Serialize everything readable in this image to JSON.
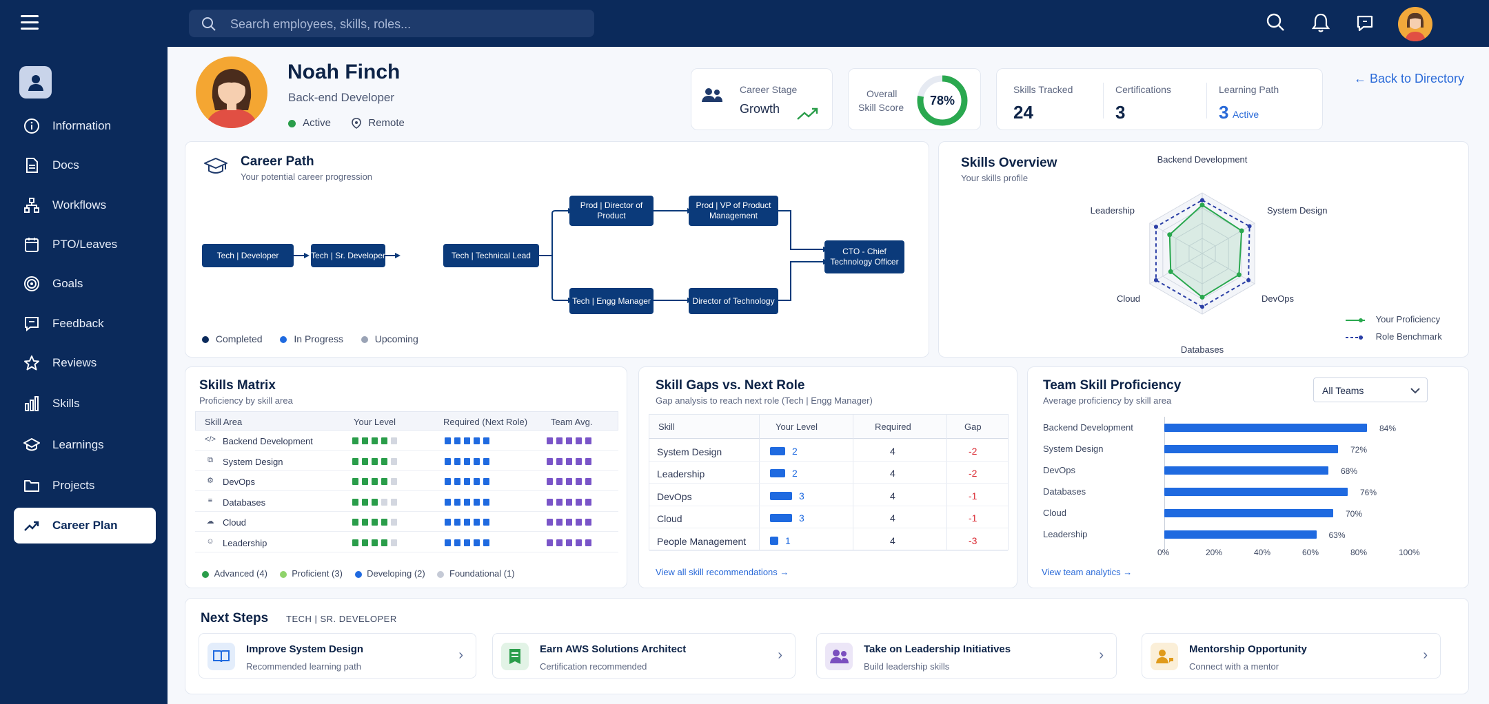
{
  "topbar": {
    "search_placeholder": "Search employees, skills, roles..."
  },
  "sidebar": {
    "items": [
      {
        "label": "Information",
        "icon": "info-icon"
      },
      {
        "label": "Docs",
        "icon": "document-icon"
      },
      {
        "label": "Workflows",
        "icon": "workflow-icon"
      },
      {
        "label": "PTO/Leaves",
        "icon": "calendar-icon"
      },
      {
        "label": "Goals",
        "icon": "target-icon"
      },
      {
        "label": "Feedback",
        "icon": "chat-icon"
      },
      {
        "label": "Reviews",
        "icon": "star-icon"
      },
      {
        "label": "Skills",
        "icon": "bar-chart-icon"
      },
      {
        "label": "Learnings",
        "icon": "graduation-cap-icon"
      },
      {
        "label": "Projects",
        "icon": "folder-icon"
      },
      {
        "label": "Career Plan",
        "icon": "trend-up-icon",
        "active": true
      }
    ]
  },
  "profile": {
    "name": "Noah Finch",
    "role": "Back-end Developer",
    "status": "Active",
    "location": "Remote",
    "status_color": "#2a9d4a"
  },
  "stats": {
    "career_stage_label": "Career Stage",
    "career_stage_value": "Growth",
    "skill_score_label_1": "Overall",
    "skill_score_label_2": "Skill Score",
    "skill_score_value": "78%",
    "skill_score_pct": 78,
    "skills_tracked_label": "Skills Tracked",
    "skills_tracked_value": "24",
    "certifications_label": "Certifications",
    "certifications_value": "3",
    "learning_path_label": "Learning Path",
    "learning_path_value": "3",
    "learning_path_status": "Active"
  },
  "back_link": "← Back to Directory",
  "career_path": {
    "title": "Career Path",
    "subtitle": "Your potential career progression",
    "nodes": {
      "dev": "Tech | Developer",
      "sr": "Tech | Sr. Developer",
      "lead": "Tech | Technical Lead",
      "dir_product": "Prod | Director of Product",
      "vp_product": "Prod | VP of Product Management",
      "engg_mgr": "Tech | Engg Manager",
      "dir_tech": "Director of Technology",
      "cto": "CTO - Chief Technology Officer"
    },
    "legend": [
      "Completed",
      "In Progress",
      "Upcoming"
    ]
  },
  "skills_overview": {
    "title": "Skills Overview",
    "subtitle": "Your skills profile",
    "axes": [
      "Backend Development",
      "System Design",
      "DevOps",
      "Databases",
      "Cloud",
      "Leadership"
    ],
    "proficiency": [
      0.8,
      0.75,
      0.7,
      0.72,
      0.6,
      0.62
    ],
    "benchmark": [
      0.88,
      0.9,
      0.88,
      0.88,
      0.88,
      0.88
    ],
    "legend": [
      "Your Proficiency",
      "Role Benchmark"
    ]
  },
  "skills_matrix": {
    "title": "Skills Matrix",
    "subtitle": "Proficiency by skill area",
    "headers": [
      "Skill Area",
      "Your Level",
      "Required (Next Role)",
      "Team Avg."
    ],
    "rows": [
      {
        "skill": "Backend Development",
        "icon": "code-icon",
        "level": 4,
        "required": 5,
        "team": 5
      },
      {
        "skill": "System Design",
        "icon": "system-icon",
        "level": 4,
        "required": 5,
        "team": 5
      },
      {
        "skill": "DevOps",
        "icon": "gear-icon",
        "level": 4,
        "required": 5,
        "team": 5
      },
      {
        "skill": "Databases",
        "icon": "database-icon",
        "level": 3,
        "required": 5,
        "team": 5
      },
      {
        "skill": "Cloud",
        "icon": "cloud-icon",
        "level": 4,
        "required": 5,
        "team": 5
      },
      {
        "skill": "Leadership",
        "icon": "people-icon",
        "level": 4,
        "required": 5,
        "team": 5
      }
    ],
    "legend": [
      "Advanced (4)",
      "Proficient (3)",
      "Developing (2)",
      "Foundational (1)"
    ]
  },
  "skill_gaps": {
    "title": "Skill Gaps vs. Next Role",
    "subtitle": "Gap analysis to reach next role (Tech | Engg Manager)",
    "headers": [
      "Skill",
      "Your Level",
      "Required",
      "Gap"
    ],
    "rows": [
      {
        "skill": "System Design",
        "level": "2",
        "required": "4",
        "gap": "-2",
        "level_num": 2
      },
      {
        "skill": "Leadership",
        "level": "2",
        "required": "4",
        "gap": "-2",
        "level_num": 2
      },
      {
        "skill": "DevOps",
        "level": "3",
        "required": "4",
        "gap": "-1",
        "level_num": 3
      },
      {
        "skill": "Cloud",
        "level": "3",
        "required": "4",
        "gap": "-1",
        "level_num": 3
      },
      {
        "skill": "People Management",
        "level": "1",
        "required": "4",
        "gap": "-3",
        "level_num": 1
      }
    ],
    "link": "View all skill recommendations →"
  },
  "team_proficiency": {
    "title": "Team Skill Proficiency",
    "subtitle": "Average proficiency by skill area",
    "filter": "All Teams",
    "categories": [
      "Backend Development",
      "System Design",
      "DevOps",
      "Databases",
      "Cloud",
      "Leadership"
    ],
    "values": [
      84,
      72,
      68,
      76,
      70,
      63
    ],
    "value_labels": [
      "84%",
      "72%",
      "68%",
      "76%",
      "70%",
      "63%"
    ],
    "ticks": [
      "0%",
      "20%",
      "40%",
      "60%",
      "80%",
      "100%"
    ],
    "link": "View team analytics →"
  },
  "next_steps": {
    "title": "Next Steps",
    "tag": "TECH | SR. DEVELOPER",
    "items": [
      {
        "title": "Improve System Design",
        "subtitle": "Recommended learning path",
        "icon": "book-icon"
      },
      {
        "title": "Earn AWS Solutions Architect",
        "subtitle": "Certification recommended",
        "icon": "certificate-icon"
      },
      {
        "title": "Take on Leadership Initiatives",
        "subtitle": "Build leadership skills",
        "icon": "team-icon"
      },
      {
        "title": "Mentorship Opportunity",
        "subtitle": "Connect with a mentor",
        "icon": "mentor-icon"
      }
    ]
  }
}
